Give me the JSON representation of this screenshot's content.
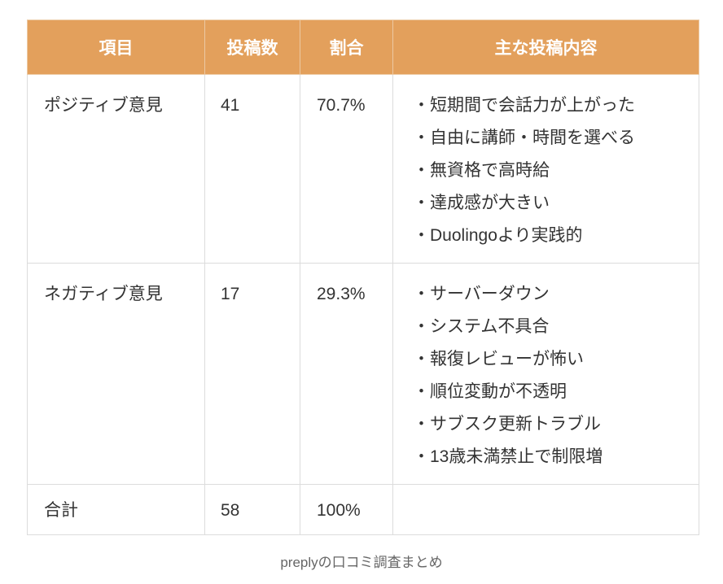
{
  "colors": {
    "header_bg": "#e3a05c",
    "header_text": "#ffffff"
  },
  "table": {
    "headers": [
      "項目",
      "投稿数",
      "割合",
      "主な投稿内容"
    ],
    "rows": [
      {
        "item": "ポジティブ意見",
        "count": "41",
        "ratio": "70.7%",
        "contents": [
          "・短期間で会話力が上がった",
          "・自由に講師・時間を選べる",
          "・無資格で高時給",
          "・達成感が大きい",
          "・Duolingoより実践的"
        ]
      },
      {
        "item": "ネガティブ意見",
        "count": "17",
        "ratio": "29.3%",
        "contents": [
          "・サーバーダウン",
          "・システム不具合",
          "・報復レビューが怖い",
          "・順位変動が不透明",
          "・サブスク更新トラブル",
          "・13歳未満禁止で制限増"
        ]
      },
      {
        "item": "合計",
        "count": "58",
        "ratio": "100%",
        "contents": []
      }
    ]
  },
  "caption": "preplyの口コミ調査まとめ"
}
